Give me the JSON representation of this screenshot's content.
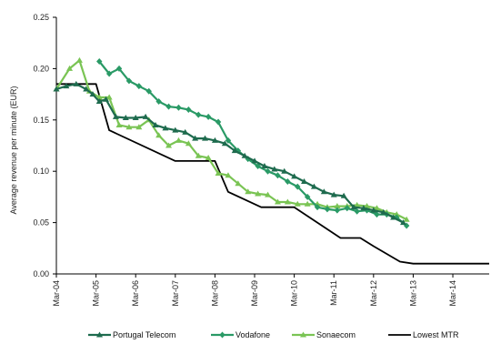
{
  "chart_data": {
    "type": "line",
    "ylabel": "Average revenue per minute (EUR)",
    "xlabel": "",
    "ylim": [
      0,
      0.25
    ],
    "yticks": [
      "0.00",
      "0.05",
      "0.10",
      "0.15",
      "0.20",
      "0.25"
    ],
    "ytick_values": [
      0,
      0.05,
      0.1,
      0.15,
      0.2,
      0.25
    ],
    "xlim": [
      0,
      131
    ],
    "xticks": [
      "Mar-04",
      "Mar-05",
      "Mar-06",
      "Mar-07",
      "Mar-08",
      "Mar-09",
      "Mar-10",
      "Mar-11",
      "Mar-12",
      "Mar-13",
      "Mar-14"
    ],
    "xtick_values": [
      0,
      12,
      24,
      36,
      48,
      60,
      72,
      84,
      96,
      108,
      120
    ],
    "legend_position": "bottom",
    "grid": false,
    "series": [
      {
        "name": "Portugal Telecom",
        "color": "#1e6b4e",
        "marker": "triangle",
        "x": [
          0,
          3,
          6,
          9,
          11,
          13,
          15,
          18,
          21,
          24,
          27,
          30,
          33,
          36,
          39,
          42,
          45,
          48,
          51,
          54,
          57,
          60,
          63,
          66,
          69,
          72,
          75,
          78,
          81,
          84,
          87,
          90,
          93,
          96,
          99,
          102,
          105
        ],
        "y": [
          0.18,
          0.183,
          0.185,
          0.18,
          0.175,
          0.168,
          0.17,
          0.153,
          0.152,
          0.152,
          0.153,
          0.145,
          0.142,
          0.14,
          0.138,
          0.132,
          0.132,
          0.13,
          0.127,
          0.12,
          0.115,
          0.11,
          0.105,
          0.102,
          0.1,
          0.095,
          0.09,
          0.085,
          0.08,
          0.077,
          0.076,
          0.065,
          0.064,
          0.062,
          0.06,
          0.055,
          0.05
        ]
      },
      {
        "name": "Vodafone",
        "color": "#2a9a66",
        "marker": "diamond",
        "x": [
          13,
          16,
          19,
          22,
          25,
          28,
          31,
          34,
          37,
          40,
          43,
          46,
          49,
          52,
          55,
          58,
          61,
          64,
          67,
          70,
          73,
          76,
          79,
          82,
          85,
          88,
          91,
          94,
          97,
          100,
          103,
          106
        ],
        "y": [
          0.207,
          0.195,
          0.2,
          0.188,
          0.183,
          0.178,
          0.168,
          0.163,
          0.162,
          0.16,
          0.155,
          0.153,
          0.148,
          0.13,
          0.12,
          0.112,
          0.105,
          0.1,
          0.096,
          0.09,
          0.085,
          0.075,
          0.065,
          0.063,
          0.062,
          0.064,
          0.061,
          0.062,
          0.058,
          0.058,
          0.055,
          0.047
        ]
      },
      {
        "name": "Sonaecom",
        "color": "#7ac454",
        "marker": "triangle",
        "x": [
          0,
          4,
          7,
          10,
          13,
          16,
          19,
          22,
          25,
          28,
          31,
          34,
          37,
          40,
          43,
          46,
          49,
          52,
          55,
          58,
          61,
          64,
          67,
          70,
          73,
          76,
          79,
          82,
          85,
          88,
          91,
          94,
          97,
          100,
          103,
          106
        ],
        "y": [
          0.18,
          0.2,
          0.208,
          0.178,
          0.172,
          0.172,
          0.145,
          0.143,
          0.143,
          0.15,
          0.135,
          0.125,
          0.13,
          0.127,
          0.115,
          0.113,
          0.098,
          0.096,
          0.088,
          0.08,
          0.078,
          0.077,
          0.07,
          0.07,
          0.068,
          0.068,
          0.068,
          0.065,
          0.066,
          0.066,
          0.067,
          0.066,
          0.064,
          0.06,
          0.058,
          0.053
        ]
      },
      {
        "name": "Lowest MTR",
        "color": "#000000",
        "marker": "none",
        "step": true,
        "x": [
          0,
          12,
          16,
          36,
          48,
          52,
          62,
          72,
          86,
          92,
          96,
          104,
          108,
          131
        ],
        "y": [
          0.185,
          0.185,
          0.14,
          0.11,
          0.11,
          0.08,
          0.065,
          0.065,
          0.035,
          0.035,
          0.027,
          0.012,
          0.01,
          0.01
        ]
      }
    ]
  }
}
